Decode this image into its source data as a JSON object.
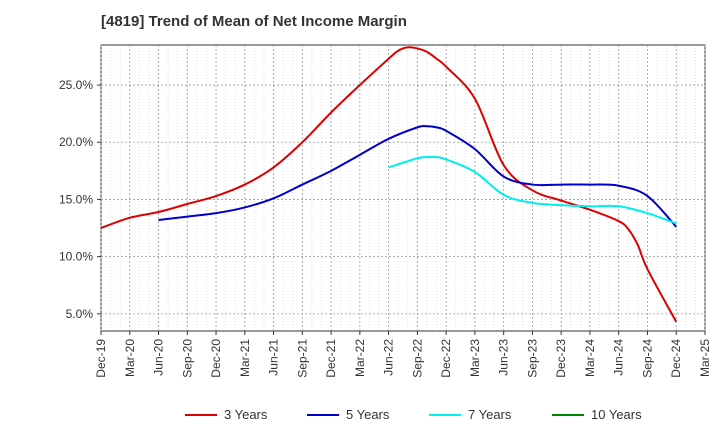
{
  "title": "[4819]  Trend of Mean of Net Income Margin",
  "chart_data": {
    "type": "line",
    "title": "[4819]  Trend of Mean of Net Income Margin",
    "xlabel": "",
    "ylabel": "",
    "x_ticks": [
      "Dec-19",
      "Mar-20",
      "Jun-20",
      "Sep-20",
      "Dec-20",
      "Mar-21",
      "Jun-21",
      "Sep-21",
      "Dec-21",
      "Mar-22",
      "Jun-22",
      "Sep-22",
      "Dec-22",
      "Mar-23",
      "Jun-23",
      "Sep-23",
      "Dec-23",
      "Mar-24",
      "Jun-24",
      "Sep-24",
      "Dec-24",
      "Mar-25"
    ],
    "y_ticks": [
      "5.0%",
      "10.0%",
      "15.0%",
      "20.0%",
      "25.0%"
    ],
    "y_tick_values": [
      5,
      10,
      15,
      20,
      25
    ],
    "ylim": [
      3.5,
      28.5
    ],
    "grid": true,
    "legend_position": "bottom",
    "series": [
      {
        "name": "3 Years",
        "color": "#dd0000",
        "points": [
          [
            "Dec-19",
            12.5
          ],
          [
            "Mar-20",
            13.4
          ],
          [
            "Jun-20",
            13.9
          ],
          [
            "Sep-20",
            14.6
          ],
          [
            "Dec-20",
            15.3
          ],
          [
            "Mar-21",
            16.3
          ],
          [
            "Jun-21",
            17.8
          ],
          [
            "Sep-21",
            20.0
          ],
          [
            "Dec-21",
            22.6
          ],
          [
            "Mar-22",
            25.0
          ],
          [
            "Jun-22",
            27.3
          ],
          [
            "Jul-22",
            28.0
          ],
          [
            "Aug-22",
            28.3
          ],
          [
            "Sep-22",
            28.2
          ],
          [
            "Oct-22",
            27.9
          ],
          [
            "Nov-22",
            27.3
          ],
          [
            "Dec-22",
            26.6
          ],
          [
            "Mar-23",
            23.8
          ],
          [
            "Jun-23",
            18.0
          ],
          [
            "Sep-23",
            15.8
          ],
          [
            "Dec-23",
            14.9
          ],
          [
            "Mar-24",
            14.1
          ],
          [
            "Jun-24",
            13.1
          ],
          [
            "Jul-24",
            12.4
          ],
          [
            "Aug-24",
            11.0
          ],
          [
            "Sep-24",
            8.9
          ],
          [
            "Dec-24",
            4.3
          ]
        ]
      },
      {
        "name": "5 Years",
        "color": "#0000cc",
        "points": [
          [
            "Jun-20",
            13.2
          ],
          [
            "Sep-20",
            13.5
          ],
          [
            "Dec-20",
            13.8
          ],
          [
            "Mar-21",
            14.3
          ],
          [
            "Jun-21",
            15.1
          ],
          [
            "Sep-21",
            16.3
          ],
          [
            "Dec-21",
            17.5
          ],
          [
            "Mar-22",
            18.9
          ],
          [
            "Jun-22",
            20.3
          ],
          [
            "Sep-22",
            21.3
          ],
          [
            "Oct-22",
            21.4
          ],
          [
            "Nov-22",
            21.3
          ],
          [
            "Dec-22",
            21.0
          ],
          [
            "Mar-23",
            19.4
          ],
          [
            "Jun-23",
            17.0
          ],
          [
            "Sep-23",
            16.3
          ],
          [
            "Dec-23",
            16.3
          ],
          [
            "Mar-24",
            16.3
          ],
          [
            "Jun-24",
            16.2
          ],
          [
            "Sep-24",
            15.3
          ],
          [
            "Dec-24",
            12.6
          ]
        ]
      },
      {
        "name": "7 Years",
        "color": "#00eeee",
        "points": [
          [
            "Jun-22",
            17.8
          ],
          [
            "Sep-22",
            18.6
          ],
          [
            "Oct-22",
            18.7
          ],
          [
            "Nov-22",
            18.7
          ],
          [
            "Dec-22",
            18.5
          ],
          [
            "Mar-23",
            17.4
          ],
          [
            "Jun-23",
            15.4
          ],
          [
            "Sep-23",
            14.7
          ],
          [
            "Dec-23",
            14.5
          ],
          [
            "Mar-24",
            14.4
          ],
          [
            "Jun-24",
            14.4
          ],
          [
            "Sep-24",
            13.8
          ],
          [
            "Dec-24",
            12.9
          ]
        ]
      },
      {
        "name": "10 Years",
        "color": "#008800",
        "points": []
      }
    ]
  }
}
